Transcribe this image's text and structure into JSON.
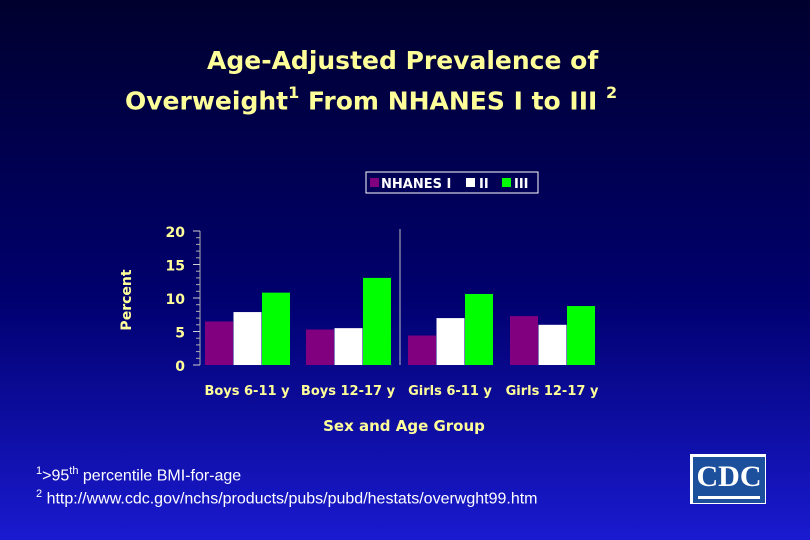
{
  "title": {
    "line1": "Age-Adjusted Prevalence of",
    "line2": "Overweight",
    "line2_sup": "1",
    "line3": " From NHANES I to III ",
    "line3_sup": "2"
  },
  "chart_data": {
    "type": "bar",
    "title": "",
    "xlabel": "Sex and Age Group",
    "ylabel": "Percent",
    "ylim": [
      0,
      20
    ],
    "yticks": [
      0,
      5,
      10,
      15,
      20
    ],
    "categories": [
      "Boys 6-11 y",
      "Boys 12-17 y",
      "Girls 6-11 y",
      "Girls 12-17 y"
    ],
    "series": [
      {
        "name": "NHANES I",
        "color": "#800080",
        "values": [
          6.5,
          5.3,
          4.4,
          7.3
        ]
      },
      {
        "name": "II",
        "color": "#ffffff",
        "values": [
          7.9,
          5.5,
          7.0,
          6.0
        ]
      },
      {
        "name": "III",
        "color": "#00ff00",
        "values": [
          10.8,
          13.0,
          10.6,
          8.8
        ]
      }
    ],
    "legend_position": "top-right"
  },
  "footnotes": [
    {
      "mark": "1",
      "prefix": ">95",
      "sup": "th",
      "text": " percentile BMI-for-age"
    },
    {
      "mark": "2",
      "prefix": "",
      "sup": "",
      "text": " http://www.cdc.gov/nchs/products/pubs/pubd/hestats/overwght99.htm"
    }
  ],
  "logo": {
    "text": "CDC"
  }
}
